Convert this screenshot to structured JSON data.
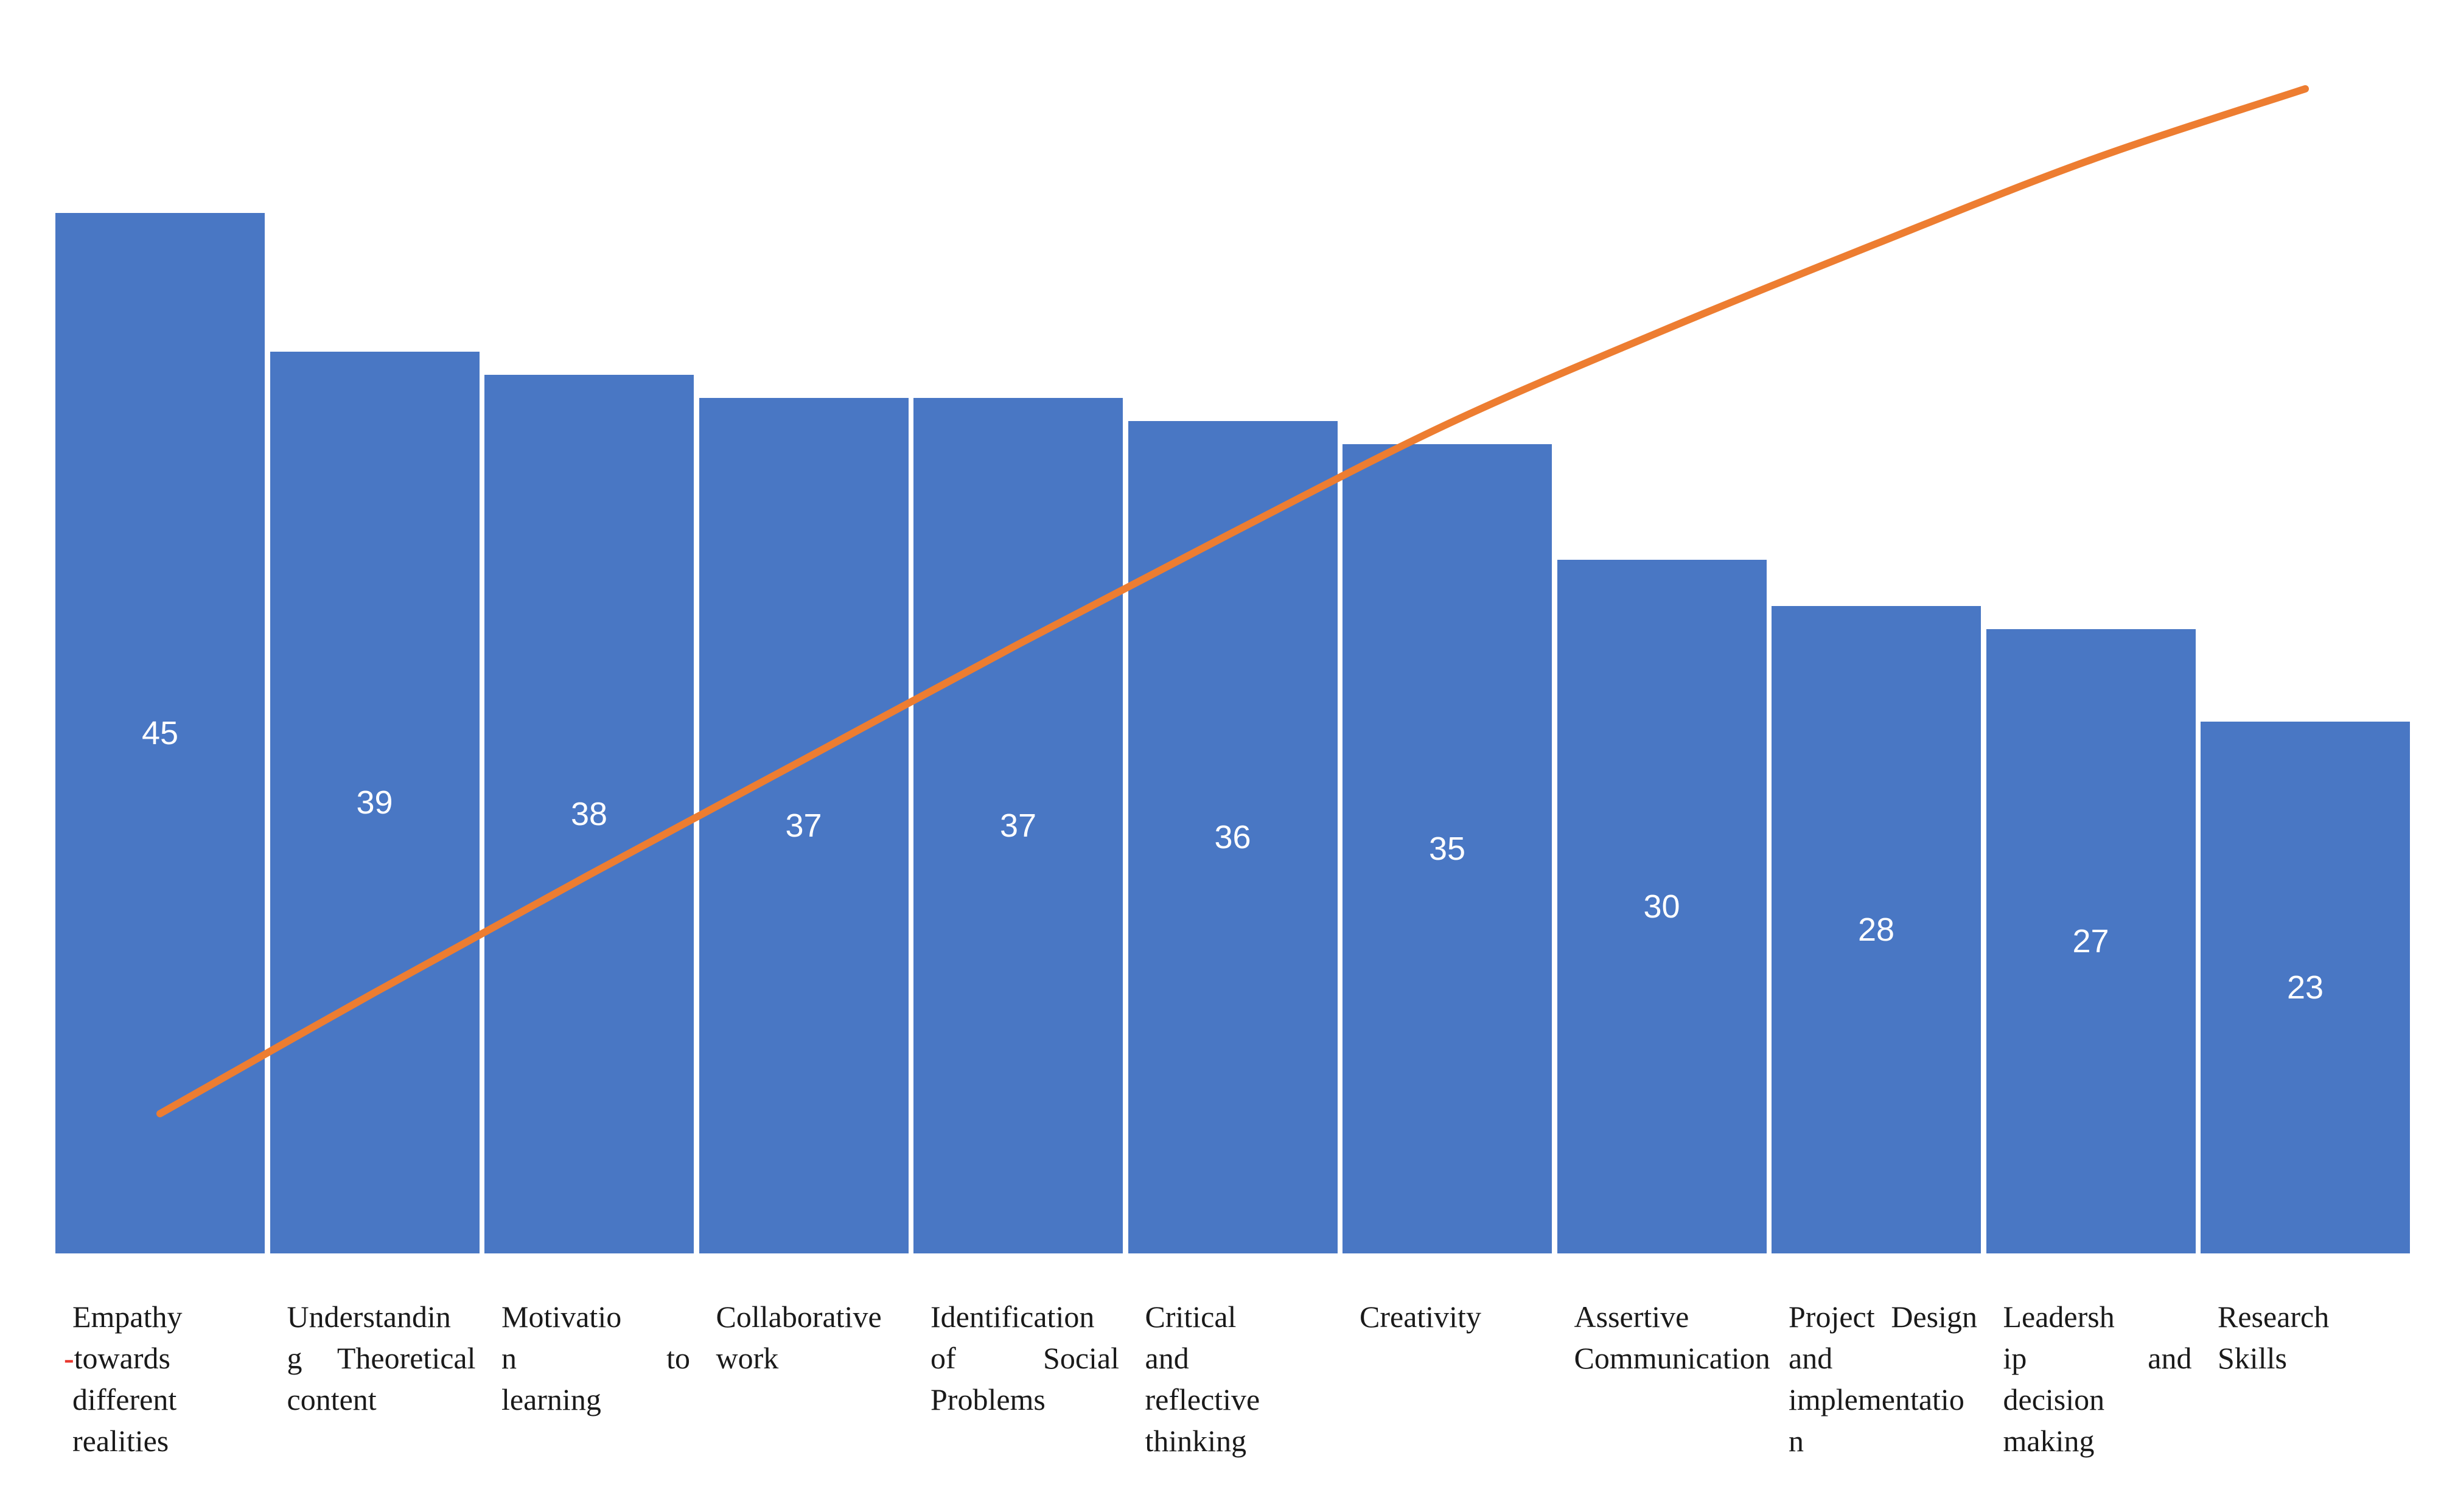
{
  "chart_data": {
    "type": "bar",
    "subtype": "pareto_bar_with_cumulative_line",
    "title": "",
    "xlabel": "",
    "ylabel": "",
    "gridlines": false,
    "legend": "none",
    "axes_visible": false,
    "value_label_position": "center_of_bar",
    "ylim": [
      0,
      45
    ],
    "secondary_ylim_percent": [
      0,
      100
    ],
    "total": 375,
    "categories": [
      "Empathy -towards different realities",
      "Understanding Theoretical content",
      "Motivation to learning",
      "Collaborative work",
      "Identification of Social Problems",
      "Critical and reflective thinking",
      "Creativity",
      "Assertive Communication",
      "Project Design and implementation",
      "Leadership and decision making",
      "Research Skills"
    ],
    "series": [
      {
        "name": "count",
        "type": "bar",
        "values": [
          45,
          39,
          38,
          37,
          37,
          36,
          35,
          30,
          28,
          27,
          23
        ]
      },
      {
        "name": "cumulative_percent",
        "type": "line",
        "smooth": true,
        "values": [
          12.0,
          22.4,
          32.5,
          42.4,
          52.3,
          61.9,
          71.2,
          79.2,
          86.7,
          93.9,
          100.0
        ]
      }
    ],
    "bar_value_labels": [
      "45",
      "39",
      "38",
      "37",
      "37",
      "36",
      "35",
      "30",
      "28",
      "27",
      "23"
    ],
    "category_label_lines": [
      [
        "Empathy",
        "-towards",
        "different",
        "realities"
      ],
      [
        "Understandin",
        "g Theoretical",
        "content"
      ],
      [
        "Motivatio",
        "n to",
        "learning"
      ],
      [
        "Collaborative",
        "work"
      ],
      [
        "Identification",
        "of Social",
        "Problems"
      ],
      [
        "Critical",
        "and",
        "reflective",
        "thinking"
      ],
      [
        "Creativity"
      ],
      [
        "Assertive",
        "Communication"
      ],
      [
        "Project Design",
        "and",
        "implementatio",
        "n"
      ],
      [
        "Leadersh",
        "ip and",
        "decision",
        "making"
      ],
      [
        "Research",
        "Skills"
      ]
    ],
    "first_label_has_red_hyphen": true,
    "colors": {
      "bar": "#4977C4",
      "line": "#ED7D31",
      "value_label": "#FFFFFF",
      "category_label": "#1A1A1A",
      "red_hyphen": "#E8372D",
      "background": "#FFFFFF"
    }
  }
}
